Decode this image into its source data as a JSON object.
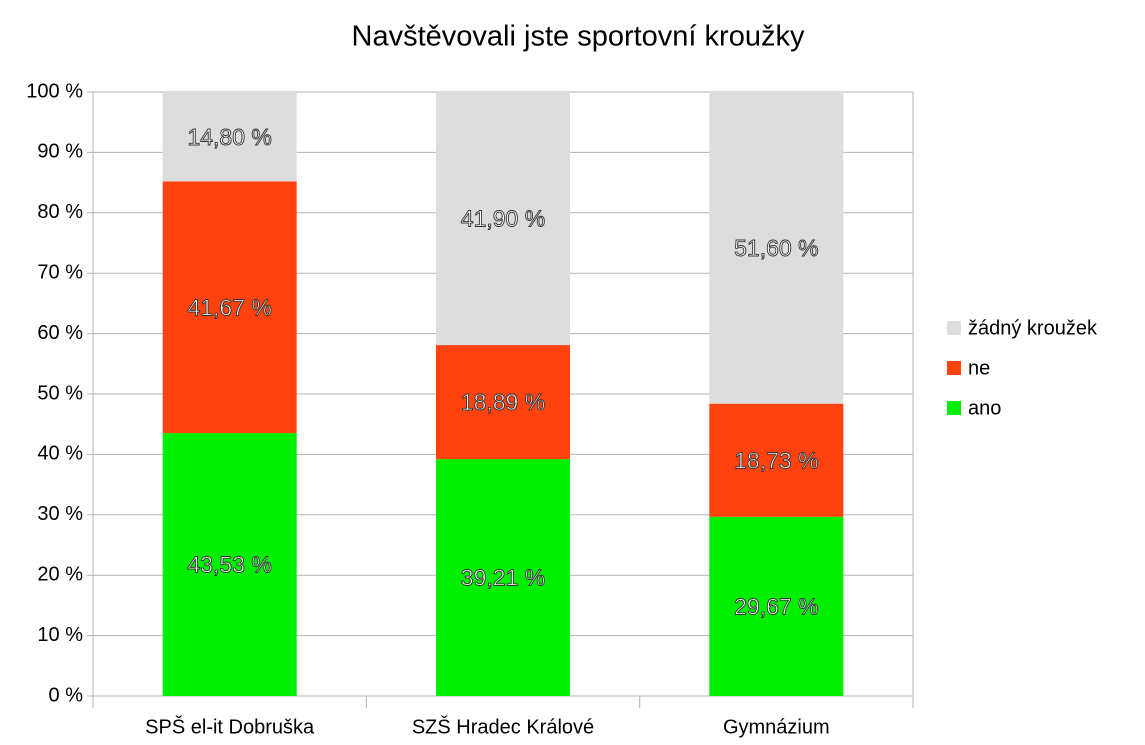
{
  "chart_data": {
    "type": "stacked_bar",
    "title": "Navštěvovali jste sportovní kroužky",
    "categories": [
      "SPŠ el-it Dobruška",
      "SZŠ Hradec Králové",
      "Gymnázium"
    ],
    "series": [
      {
        "name": "ano",
        "color": "#00ee00",
        "values": [
          43.53,
          39.21,
          29.67
        ],
        "value_labels": [
          "43,53 %",
          "39,21 %",
          "29,67 %"
        ]
      },
      {
        "name": "ne",
        "color": "#ff420e",
        "values": [
          41.67,
          18.89,
          18.73
        ],
        "value_labels": [
          "41,67 %",
          "18,89 %",
          "18,73 %"
        ]
      },
      {
        "name": "žádný kroužek",
        "color": "#dddddd",
        "values": [
          14.8,
          41.9,
          51.6
        ],
        "value_labels": [
          "14,80 %",
          "41,90 %",
          "51,60 %"
        ]
      }
    ],
    "ylim": [
      0,
      100
    ],
    "yticks": [
      {
        "value": 0,
        "label": "0 %"
      },
      {
        "value": 10,
        "label": "10 %"
      },
      {
        "value": 20,
        "label": "20 %"
      },
      {
        "value": 30,
        "label": "30 %"
      },
      {
        "value": 40,
        "label": "40 %"
      },
      {
        "value": 50,
        "label": "50 %"
      },
      {
        "value": 60,
        "label": "60 %"
      },
      {
        "value": 70,
        "label": "70 %"
      },
      {
        "value": 80,
        "label": "80 %"
      },
      {
        "value": 90,
        "label": "90 %"
      },
      {
        "value": 100,
        "label": "100 %"
      }
    ],
    "grid": true,
    "legend": "right"
  }
}
